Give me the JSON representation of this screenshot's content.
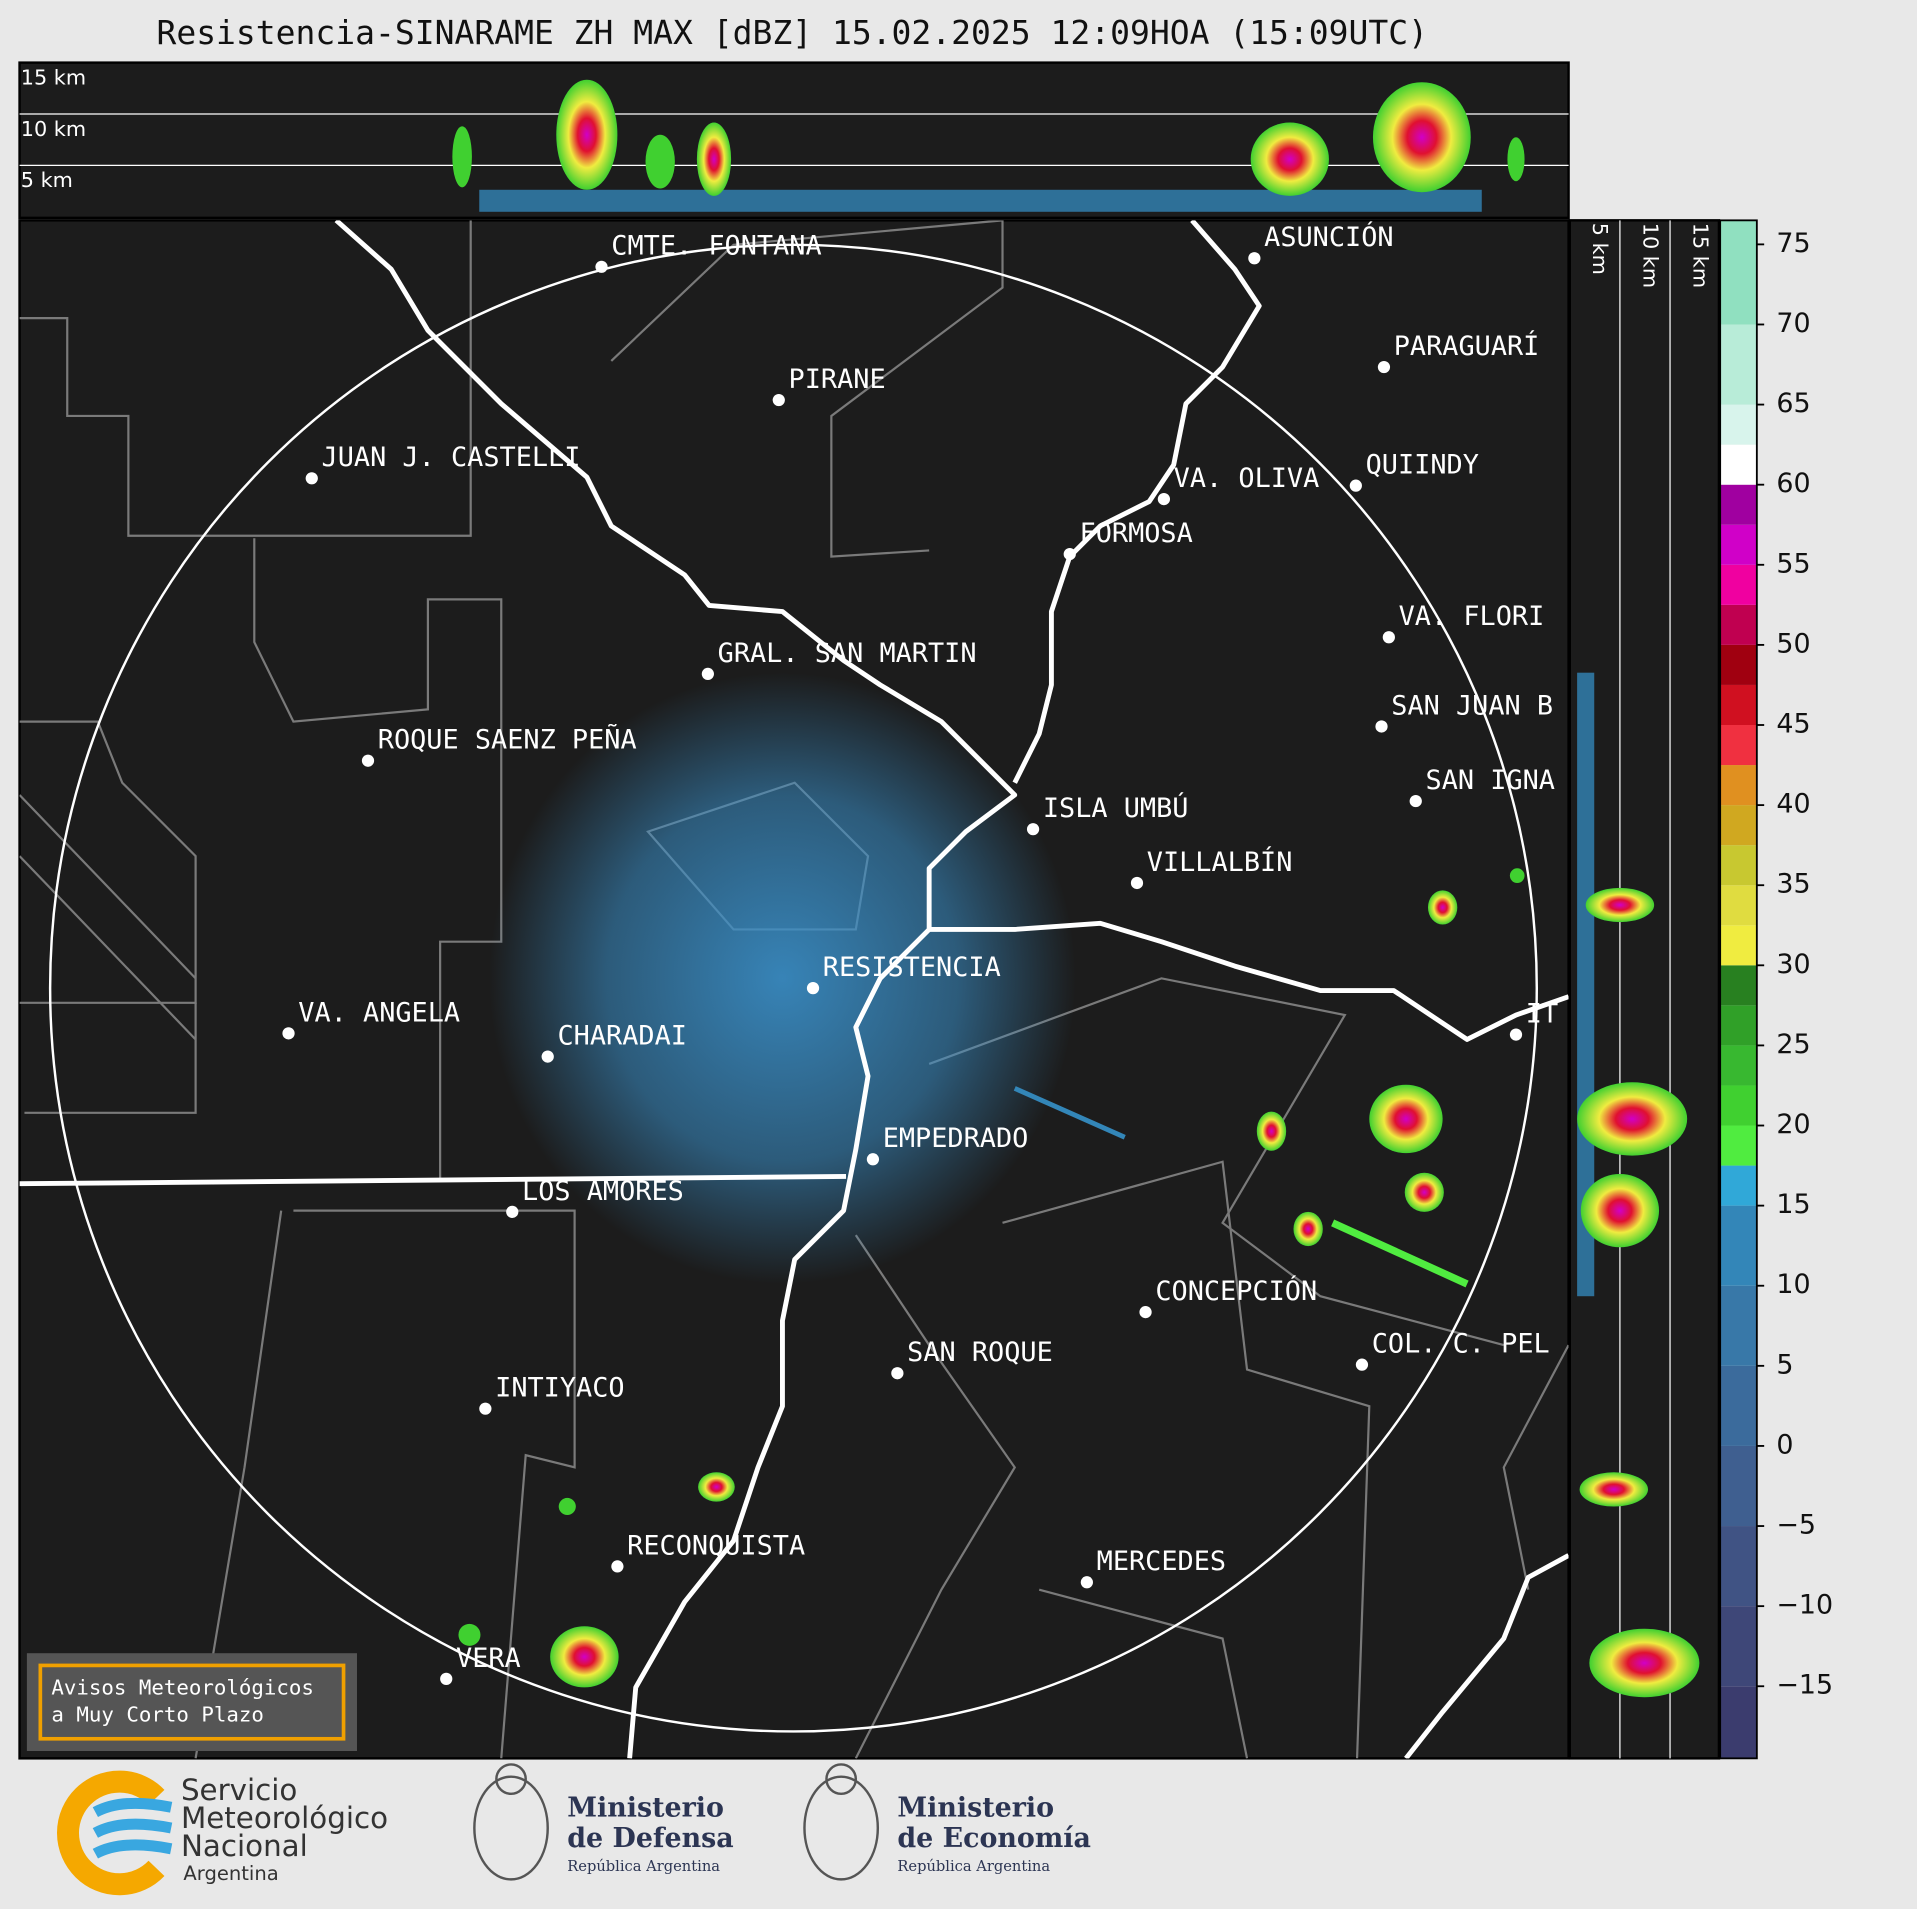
{
  "header": {
    "title": "Resistencia-SINARAME ZH MAX [dBZ] 15.02.2025 12:09HOA (15:09UTC)"
  },
  "profile_top": {
    "altitude_labels": [
      "15 km",
      "10 km",
      "5 km"
    ]
  },
  "profile_right": {
    "altitude_labels": [
      "5 km",
      "10 km",
      "15 km"
    ]
  },
  "map": {
    "cities": [
      "CMTE. FONTANA",
      "PIRANE",
      "JUAN J. CASTELLI",
      "ASUNCIÓN",
      "PARAGUARÍ",
      "VA. OLIVA",
      "QUIINDY",
      "FORMOSA",
      "GRAL. SAN MARTIN",
      "VA. FLORI",
      "ROQUE SAENZ PEÑA",
      "SAN JUAN B",
      "SAN IGNA",
      "ISLA UMBÚ",
      "VILLALBÍN",
      "RESISTENCIA",
      "VA. ANGELA",
      "CHARADAI",
      "IT",
      "EMPEDRADO",
      "LOS AMORES",
      "CONCEPCIÓN",
      "COL. C. PEL",
      "SAN ROQUE",
      "INTIYACO",
      "RECONQUISTA",
      "MERCEDES",
      "VERA"
    ]
  },
  "colorbar": {
    "lim": [
      -19.5,
      76.5
    ],
    "ticks": [
      75,
      70,
      65,
      60,
      55,
      50,
      45,
      40,
      35,
      30,
      25,
      20,
      15,
      10,
      5,
      0,
      {
        "value": -5,
        "label": "−5"
      },
      {
        "value": -10,
        "label": "−10"
      },
      {
        "value": -15,
        "label": "−15"
      }
    ],
    "bands": [
      {
        "from": -20,
        "color": "#3b3c6e"
      },
      {
        "from": -15,
        "color": "#3e4778"
      },
      {
        "from": -10,
        "color": "#405384"
      },
      {
        "from": -5,
        "color": "#3f5f90"
      },
      {
        "from": 0,
        "color": "#3b6b9c"
      },
      {
        "from": 5,
        "color": "#3878a8"
      },
      {
        "from": 10,
        "color": "#3386b8"
      },
      {
        "from": 15,
        "color": "#30a8d8"
      },
      {
        "from": 17.5,
        "color": "#50ec40"
      },
      {
        "from": 20,
        "color": "#40d030"
      },
      {
        "from": 22.5,
        "color": "#38b830"
      },
      {
        "from": 25,
        "color": "#30a028"
      },
      {
        "from": 27.5,
        "color": "#288020"
      },
      {
        "from": 30,
        "color": "#f0ec40"
      },
      {
        "from": 32.5,
        "color": "#e0dc40"
      },
      {
        "from": 35,
        "color": "#c8c830"
      },
      {
        "from": 37.5,
        "color": "#d0a820"
      },
      {
        "from": 40,
        "color": "#e09020"
      },
      {
        "from": 42.5,
        "color": "#f03040"
      },
      {
        "from": 45,
        "color": "#d01020"
      },
      {
        "from": 47.5,
        "color": "#a00010"
      },
      {
        "from": 50,
        "color": "#c00050"
      },
      {
        "from": 52.5,
        "color": "#f000a0"
      },
      {
        "from": 55,
        "color": "#d000c8"
      },
      {
        "from": 57.5,
        "color": "#a000a0"
      },
      {
        "from": 60,
        "color": "#ffffff"
      },
      {
        "from": 62.5,
        "color": "#d8f4ec"
      },
      {
        "from": 65,
        "color": "#b8ecd8"
      },
      {
        "from": 70,
        "color": "#90e0c0"
      }
    ]
  },
  "notice": {
    "lines": [
      "Avisos Meteorológicos",
      "a Muy Corto Plazo"
    ]
  },
  "footer": {
    "smn": [
      "Servicio",
      "Meteorológico",
      "Nacional",
      "Argentina"
    ],
    "defensa": [
      "Ministerio",
      "de Defensa",
      "República Argentina"
    ],
    "economia": [
      "Ministerio",
      "de Economía",
      "República Argentina"
    ]
  }
}
